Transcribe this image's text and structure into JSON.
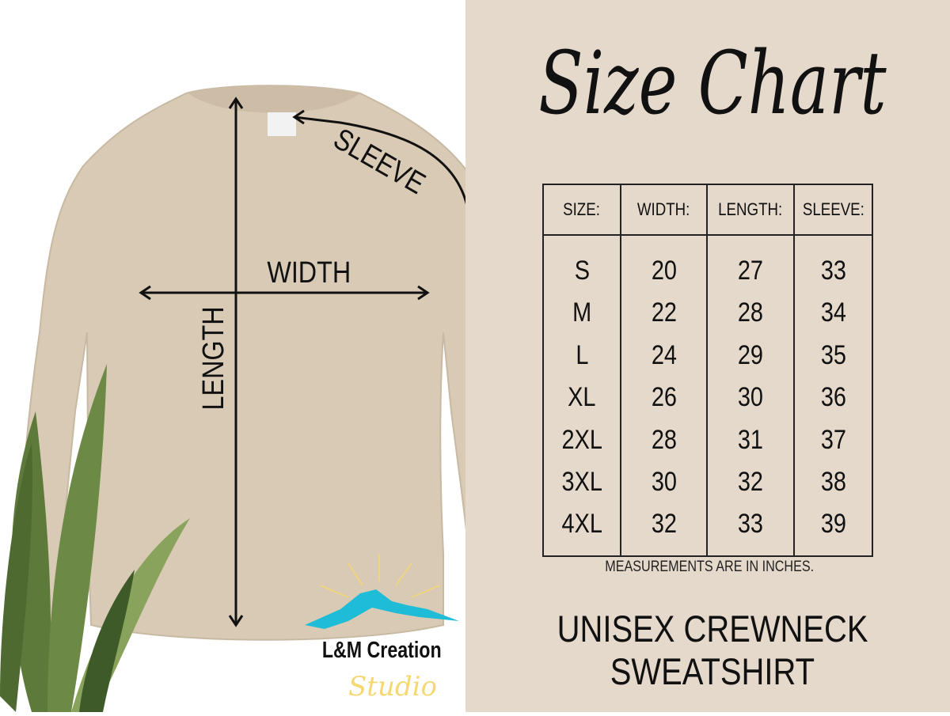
{
  "title": "Size Chart",
  "garment_labels": {
    "sleeve": "SLEEVE",
    "width": "WIDTH",
    "length": "LENGTH"
  },
  "table": {
    "headers": [
      "SIZE:",
      "WIDTH:",
      "LENGTH:",
      "SLEEVE:"
    ],
    "rows": [
      [
        "S",
        "20",
        "27",
        "33"
      ],
      [
        "M",
        "22",
        "28",
        "34"
      ],
      [
        "L",
        "24",
        "29",
        "35"
      ],
      [
        "XL",
        "26",
        "30",
        "36"
      ],
      [
        "2XL",
        "28",
        "31",
        "37"
      ],
      [
        "3XL",
        "30",
        "32",
        "38"
      ],
      [
        "4XL",
        "32",
        "33",
        "39"
      ]
    ]
  },
  "note": "MEASUREMENTS ARE IN INCHES.",
  "product": {
    "line1": "UNISEX CREWNECK",
    "line2": "SWEATSHIRT"
  },
  "logo": {
    "name": "L&M Creation",
    "script": "Studio"
  },
  "colors": {
    "panel": "#e5d9cb",
    "garment": "#d8cab5",
    "logo_mountain": "#1fbcd8",
    "logo_sun": "#f5d870"
  }
}
